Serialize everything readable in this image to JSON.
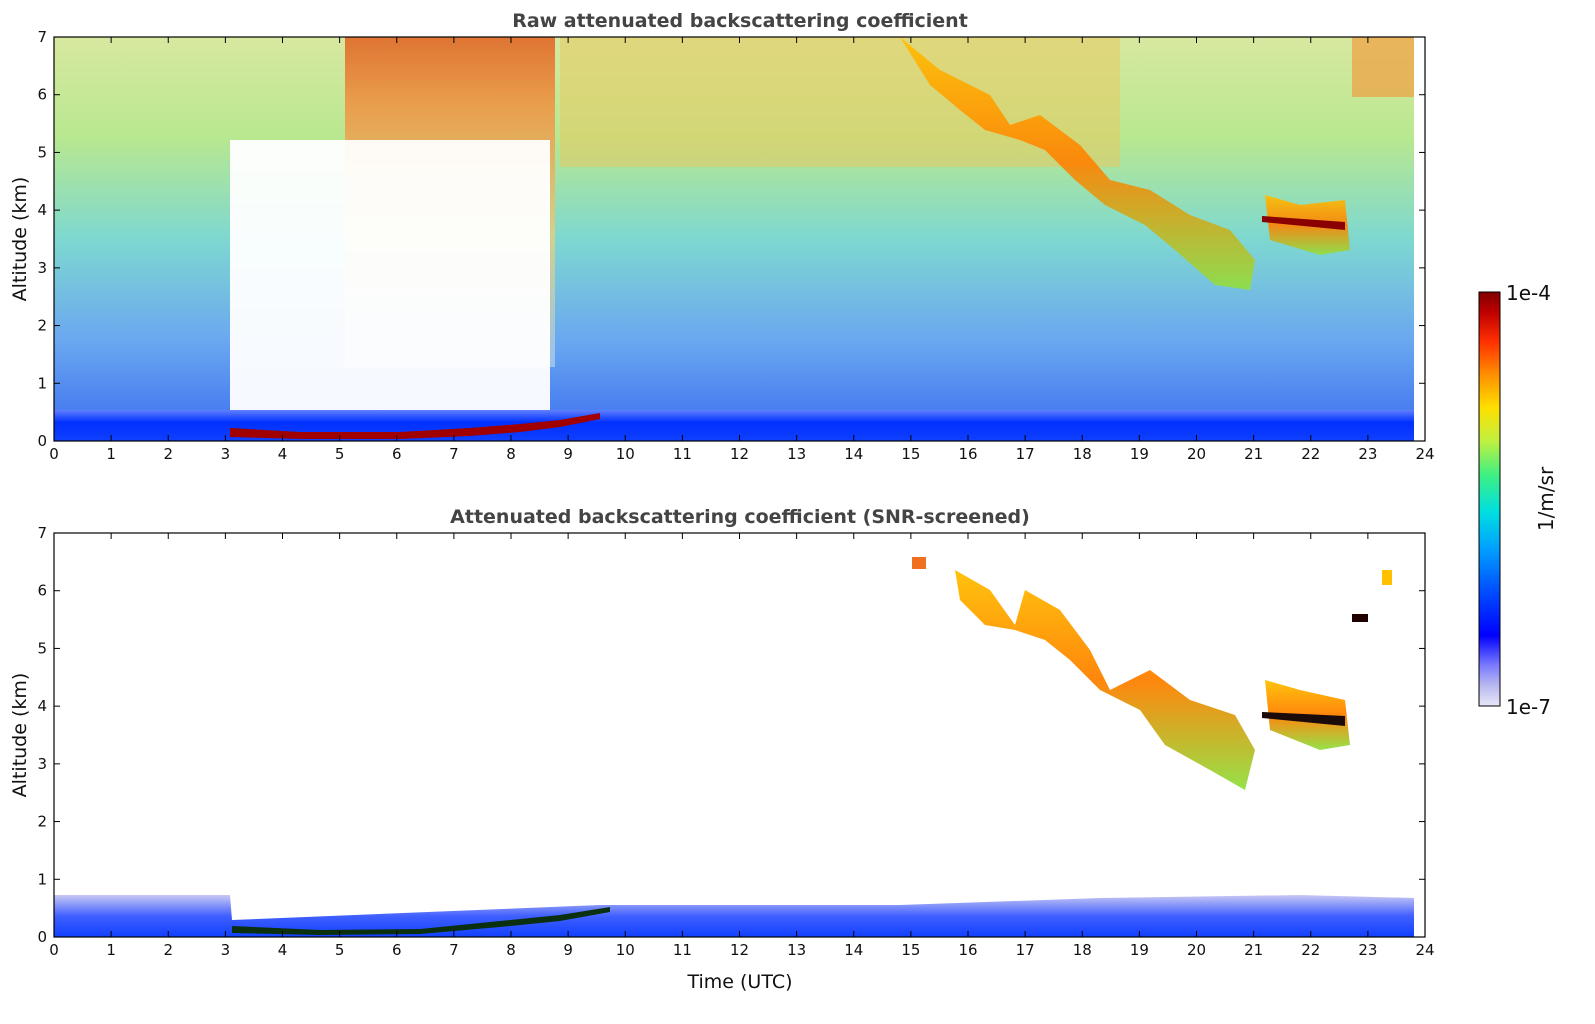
{
  "chart_data": [
    {
      "type": "heatmap",
      "title": "Raw attenuated backscattering coefficient",
      "xlabel": "",
      "ylabel": "Altitude (km)",
      "xlim": [
        0,
        24
      ],
      "ylim": [
        0,
        7
      ],
      "xticks": [
        "0",
        "1",
        "2",
        "3",
        "4",
        "5",
        "6",
        "7",
        "8",
        "9",
        "10",
        "11",
        "12",
        "13",
        "14",
        "15",
        "16",
        "17",
        "18",
        "19",
        "20",
        "21",
        "22",
        "23",
        "24"
      ],
      "yticks": [
        "0",
        "1",
        "2",
        "3",
        "4",
        "5",
        "6",
        "7"
      ],
      "features": [
        {
          "name": "boundary layer",
          "t_start": 0,
          "t_end": 23.8,
          "alt_top_km": 0.5
        },
        {
          "name": "low fog/cloud layer",
          "t_start": 3.1,
          "t_end": 9.7,
          "alt_km": [
            0.15,
            0.45
          ]
        },
        {
          "name": "cirrus descending",
          "t_start": 15.7,
          "t_end": 22.6,
          "alt_km": [
            6.2,
            3.0
          ]
        }
      ]
    },
    {
      "type": "heatmap",
      "title": "Attenuated backscattering coefficient (SNR-screened)",
      "xlabel": "Time (UTC)",
      "ylabel": "Altitude (km)",
      "xlim": [
        0,
        24
      ],
      "ylim": [
        0,
        7
      ],
      "xticks": [
        "0",
        "1",
        "2",
        "3",
        "4",
        "5",
        "6",
        "7",
        "8",
        "9",
        "10",
        "11",
        "12",
        "13",
        "14",
        "15",
        "16",
        "17",
        "18",
        "19",
        "20",
        "21",
        "22",
        "23",
        "24"
      ],
      "yticks": [
        "0",
        "1",
        "2",
        "3",
        "4",
        "5",
        "6",
        "7"
      ]
    }
  ],
  "colorbar": {
    "label": "1/m/sr",
    "max_label": "1e-4",
    "min_label": "1e-7",
    "colors": [
      "#e8e8f8",
      "#b8b8f0",
      "#7878ff",
      "#0000ff",
      "#0050ff",
      "#00a0ff",
      "#00e0e0",
      "#40f080",
      "#c0f040",
      "#ffe000",
      "#ff9000",
      "#ff3000",
      "#c00000",
      "#800000"
    ]
  }
}
